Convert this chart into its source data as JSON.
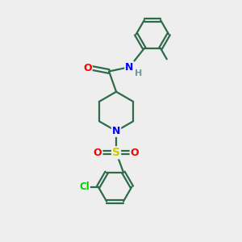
{
  "bg_color": "#eeeeee",
  "bond_color": "#2d6b4a",
  "bond_width": 1.6,
  "atom_colors": {
    "O": "#ff0000",
    "N": "#0000ff",
    "H": "#6b9999",
    "S": "#cccc00",
    "Cl": "#00cc00",
    "C": "#2d6b4a"
  },
  "figsize": [
    3.0,
    3.0
  ],
  "dpi": 100
}
